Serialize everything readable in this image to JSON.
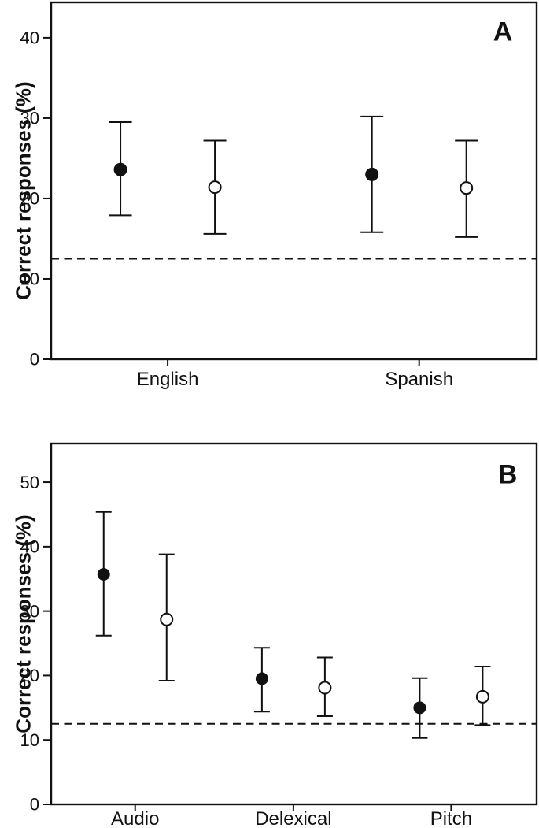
{
  "figure": {
    "colors": {
      "foreground": "#111111",
      "background": "#ffffff"
    }
  },
  "chart_data": [
    {
      "panel": "A",
      "type": "scatter",
      "title": "",
      "xlabel": "",
      "ylabel": "Correct responses (%)",
      "categories": [
        "English",
        "Spanish"
      ],
      "ylim": [
        0,
        44.4
      ],
      "yticks": [
        0,
        10,
        20,
        30,
        40
      ],
      "grid": false,
      "legend": "none",
      "chance_line": 12.5,
      "chance_line_style": "dashed",
      "series": [
        {
          "name": "filled-circle",
          "marker": "filled-circle",
          "means": [
            23.6,
            23.0
          ],
          "ci_low": [
            17.9,
            15.8
          ],
          "ci_high": [
            29.5,
            30.2
          ]
        },
        {
          "name": "open-circle",
          "marker": "open-circle",
          "means": [
            21.4,
            21.3
          ],
          "ci_low": [
            15.6,
            15.2
          ],
          "ci_high": [
            27.2,
            27.2
          ]
        }
      ]
    },
    {
      "panel": "B",
      "type": "scatter",
      "title": "",
      "xlabel": "",
      "ylabel": "Correct responses (%)",
      "categories": [
        "Audio",
        "Delexical",
        "Pitch"
      ],
      "ylim": [
        0,
        56
      ],
      "yticks": [
        0,
        10,
        20,
        30,
        40,
        50
      ],
      "grid": false,
      "legend": "none",
      "chance_line": 12.5,
      "chance_line_style": "dashed",
      "series": [
        {
          "name": "filled-circle",
          "marker": "filled-circle",
          "means": [
            35.7,
            19.5,
            15.0
          ],
          "ci_low": [
            26.2,
            14.4,
            10.3
          ],
          "ci_high": [
            45.4,
            24.3,
            19.6
          ]
        },
        {
          "name": "open-circle",
          "marker": "open-circle",
          "means": [
            28.7,
            18.1,
            16.7
          ],
          "ci_low": [
            19.2,
            13.7,
            12.3
          ],
          "ci_high": [
            38.8,
            22.8,
            21.4
          ]
        }
      ]
    }
  ]
}
